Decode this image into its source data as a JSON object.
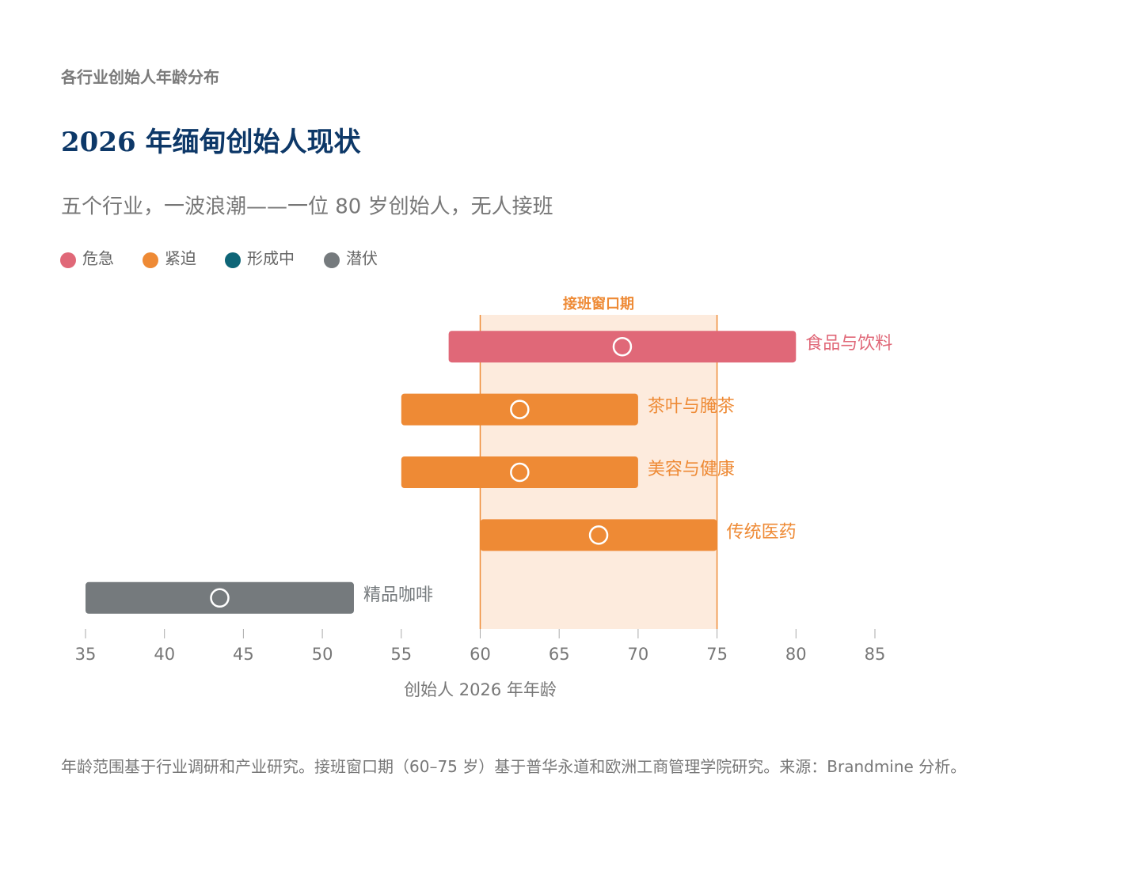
{
  "chart_data": {
    "type": "range",
    "kicker": "各行业创始人年龄分布",
    "title": "2026 年缅甸创始人现状",
    "subtitle": "五个行业，一波浪潮——一位 80 岁创始人，无人接班",
    "legend": [
      {
        "name": "危急",
        "color": "#e06878"
      },
      {
        "name": "紧迫",
        "color": "#ee8a35"
      },
      {
        "name": "形成中",
        "color": "#0e6577"
      },
      {
        "name": "潜伏",
        "color": "#757a7d"
      }
    ],
    "categories": [
      "食品与饮料",
      "茶叶与腌茶",
      "美容与健康",
      "传统医药",
      "精品咖啡"
    ],
    "low": [
      58,
      55,
      55,
      60,
      35
    ],
    "high": [
      80,
      70,
      70,
      75,
      52
    ],
    "mid": [
      69,
      62.5,
      62.5,
      67.5,
      43.5
    ],
    "colors": [
      "#e06878",
      "#ee8a35",
      "#ee8a35",
      "#ee8a35",
      "#757a7d"
    ],
    "window": {
      "label": "接班窗口期",
      "range": [
        60,
        75
      ],
      "color": "#fdebdd",
      "edge": "#ee8a35"
    },
    "xlim": [
      35,
      85
    ],
    "xticks": [
      35,
      40,
      45,
      50,
      55,
      60,
      65,
      70,
      75,
      80,
      85
    ],
    "xlabel": "创始人 2026 年年龄",
    "footnote": "年龄范围基于行业调研和产业研究。接班窗口期（60–75 岁）基于普华永道和欧洲工商管理学院研究。来源：Brandmine 分析。"
  }
}
